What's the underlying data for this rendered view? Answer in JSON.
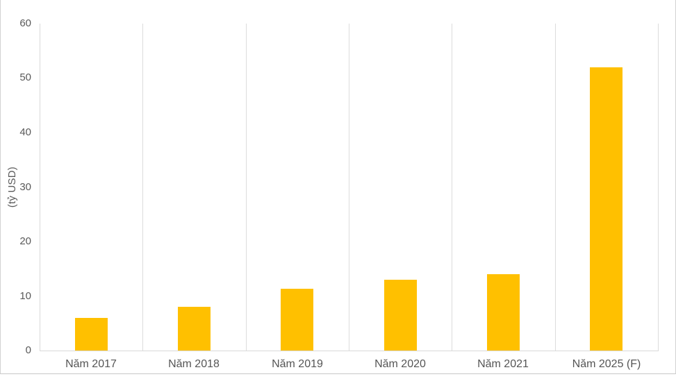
{
  "figure": {
    "background_color": "#ffffff",
    "frame_border_color": "#d2d2d2"
  },
  "chart_data": {
    "type": "bar",
    "title": "",
    "categories": [
      "Năm 2017",
      "Năm 2018",
      "Năm 2019",
      "Năm 2020",
      "Năm 2021",
      "Năm 2025 (F)"
    ],
    "values": [
      6,
      8,
      11.3,
      13,
      14,
      52
    ],
    "xlabel": "",
    "ylabel": "(tỷ USD)",
    "ylim": [
      0,
      60
    ],
    "yticks": [
      0,
      10,
      20,
      30,
      40,
      50,
      60
    ],
    "grid": "vertical-category-separators-only",
    "legend": "none",
    "bar_color": "#FFC000",
    "gridline_color": "#dcdcdc",
    "axis_line_color": "#d9d9d9",
    "tick_label_color": "#595959",
    "category_label_color": "#555555"
  }
}
